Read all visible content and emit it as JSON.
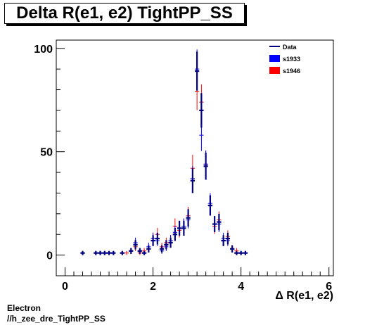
{
  "title": "Delta R(e1, e2) TightPP_SS",
  "footer": {
    "line1": "Electron",
    "line2": "//h_zee_dre_TightPP_SS"
  },
  "colors": {
    "data": "#000080",
    "s1933": "#0000ff",
    "s1946": "#ff0000"
  },
  "chart_data": {
    "type": "scatter",
    "title": "Delta R(e1, e2) TightPP_SS",
    "xlabel": "Δ R(e1, e2)",
    "ylabel": "",
    "xlim": [
      -0.2,
      6.1
    ],
    "ylim": [
      -10,
      104
    ],
    "x_ticks": [
      0,
      2,
      4,
      6
    ],
    "y_ticks": [
      0,
      50,
      100
    ],
    "bin_half_width": 0.05,
    "legend": {
      "position": "top-right",
      "entries": [
        "Data",
        "s1933",
        "s1946"
      ]
    },
    "series": [
      {
        "name": "Data",
        "style": "data",
        "points": [
          [
            0.4,
            1
          ],
          [
            0.7,
            1
          ],
          [
            0.8,
            1
          ],
          [
            0.9,
            1
          ],
          [
            1.0,
            1
          ],
          [
            1.1,
            1
          ],
          [
            1.3,
            1
          ],
          [
            1.5,
            2
          ],
          [
            1.6,
            5
          ],
          [
            1.7,
            2
          ],
          [
            1.8,
            1
          ],
          [
            1.9,
            3
          ],
          [
            2.0,
            7
          ],
          [
            2.1,
            8
          ],
          [
            2.2,
            3
          ],
          [
            2.3,
            5
          ],
          [
            2.4,
            6
          ],
          [
            2.5,
            10
          ],
          [
            2.6,
            13
          ],
          [
            2.7,
            13
          ],
          [
            2.8,
            18
          ],
          [
            2.9,
            36
          ],
          [
            3.0,
            89
          ],
          [
            3.1,
            70
          ],
          [
            3.2,
            43
          ],
          [
            3.3,
            24
          ],
          [
            3.4,
            15
          ],
          [
            3.5,
            16
          ],
          [
            3.6,
            7
          ],
          [
            3.7,
            8
          ],
          [
            3.8,
            3
          ],
          [
            3.9,
            1
          ],
          [
            4.0,
            1
          ],
          [
            4.1,
            1
          ]
        ]
      },
      {
        "name": "s1933",
        "style": "mc",
        "points": [
          [
            0.4,
            1
          ],
          [
            0.7,
            1
          ],
          [
            0.8,
            1
          ],
          [
            0.9,
            1
          ],
          [
            1.0,
            1
          ],
          [
            1.1,
            1
          ],
          [
            1.3,
            1
          ],
          [
            1.5,
            2
          ],
          [
            1.6,
            6
          ],
          [
            1.7,
            2
          ],
          [
            1.8,
            1
          ],
          [
            1.9,
            4
          ],
          [
            2.0,
            8
          ],
          [
            2.1,
            7
          ],
          [
            2.2,
            2
          ],
          [
            2.3,
            4
          ],
          [
            2.4,
            7
          ],
          [
            2.5,
            11
          ],
          [
            2.6,
            13
          ],
          [
            2.7,
            14
          ],
          [
            2.8,
            17
          ],
          [
            2.9,
            37
          ],
          [
            3.0,
            90
          ],
          [
            3.1,
            58
          ],
          [
            3.2,
            44
          ],
          [
            3.3,
            25
          ],
          [
            3.4,
            15
          ],
          [
            3.5,
            15
          ],
          [
            3.6,
            8
          ],
          [
            3.7,
            7
          ],
          [
            3.8,
            3
          ],
          [
            3.9,
            1
          ],
          [
            4.0,
            1
          ],
          [
            4.1,
            1
          ]
        ]
      },
      {
        "name": "s1946",
        "style": "mc",
        "points": [
          [
            1.4,
            1
          ],
          [
            1.5,
            2
          ],
          [
            1.6,
            4
          ],
          [
            1.7,
            1
          ],
          [
            1.8,
            2
          ],
          [
            1.9,
            3
          ],
          [
            2.0,
            8
          ],
          [
            2.1,
            10
          ],
          [
            2.2,
            4
          ],
          [
            2.3,
            6
          ],
          [
            2.4,
            7
          ],
          [
            2.5,
            14
          ],
          [
            2.6,
            12
          ],
          [
            2.7,
            14
          ],
          [
            2.8,
            19
          ],
          [
            2.9,
            42
          ],
          [
            3.0,
            79
          ],
          [
            3.1,
            74
          ],
          [
            3.2,
            44
          ],
          [
            3.3,
            24
          ],
          [
            3.4,
            14
          ],
          [
            3.5,
            17
          ],
          [
            3.6,
            7
          ],
          [
            3.7,
            9
          ],
          [
            3.8,
            3
          ],
          [
            3.9,
            2
          ]
        ]
      }
    ]
  }
}
